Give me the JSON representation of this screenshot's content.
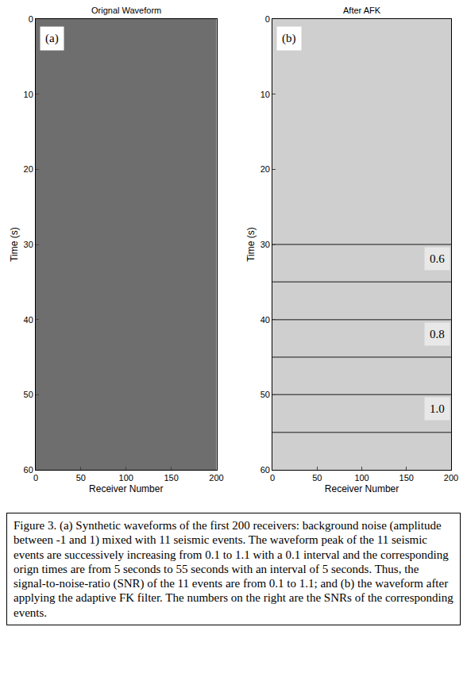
{
  "chart_data": [
    {
      "type": "image",
      "title": "Orignal Waveform",
      "annotations": [
        {
          "text": "(a)"
        }
      ],
      "xlabel": "Receiver Number",
      "ylabel": "Time (s)",
      "xlim": [
        0,
        200
      ],
      "xticks": [
        0,
        50,
        100,
        150,
        200
      ],
      "ylim": [
        60,
        0
      ],
      "yticks": [
        0,
        10,
        20,
        30,
        40,
        50,
        60
      ],
      "color": "#6e6e6e"
    },
    {
      "type": "line",
      "title": "After AFK",
      "annotations": [
        {
          "text": "(b)"
        },
        {
          "text": "0.6",
          "y": 30
        },
        {
          "text": "0.8",
          "y": 40
        },
        {
          "text": "1.0",
          "y": 50
        }
      ],
      "xlabel": "Receiver Number",
      "ylabel": "Time (s)",
      "x": [
        0,
        200
      ],
      "series": [
        {
          "values": [
            30,
            30
          ]
        },
        {
          "values": [
            35,
            35
          ]
        },
        {
          "values": [
            40,
            40
          ]
        },
        {
          "values": [
            45,
            45
          ]
        },
        {
          "values": [
            50,
            50
          ]
        },
        {
          "values": [
            55,
            55
          ]
        }
      ],
      "xlim": [
        0,
        200
      ],
      "xticks": [
        0,
        50,
        100,
        150,
        200
      ],
      "ylim": [
        60,
        0
      ],
      "yticks": [
        0,
        10,
        20,
        30,
        40,
        50,
        60
      ],
      "color": "#555555"
    }
  ],
  "caption": "Figure 3. (a) Synthetic waveforms of the first 200 receivers: background noise  (amplitude between -1 and 1) mixed with 11 seismic events. The waveform peak of the 11 seismic events are successively increasing from 0.1 to 1.1 with a 0.1 interval and the corresponding orign times are from 5 seconds to 55 seconds with an interval of 5 seconds. Thus, the signal-to-noise-ratio (SNR) of the 11 events are from 0.1 to 1.1;  and (b) the waveform after applying the adaptive FK filter. The numbers on the right are the SNRs of the corresponding events."
}
